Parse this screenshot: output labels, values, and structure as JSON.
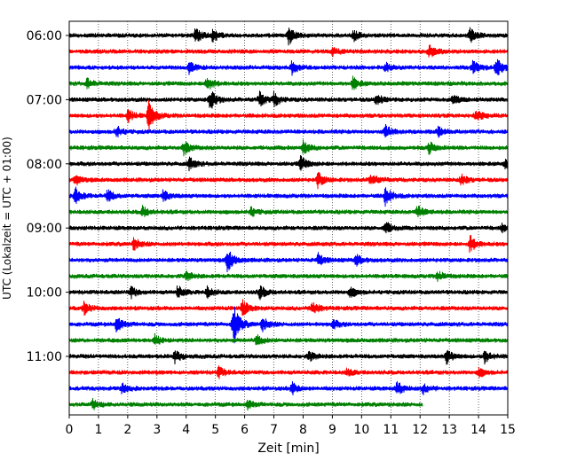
{
  "chart_data": {
    "type": "line",
    "title": "",
    "xlabel": "Zeit  [min]",
    "ylabel": "UTC (Lokalzeit = UTC + 01:00)",
    "xlim": [
      0,
      15
    ],
    "x_ticks": [
      "0",
      "1",
      "2",
      "3",
      "4",
      "5",
      "6",
      "7",
      "8",
      "9",
      "10",
      "11",
      "12",
      "13",
      "14",
      "15"
    ],
    "row_interval_min": 15,
    "y_ticks": [
      {
        "label": "06:00",
        "row": 0
      },
      {
        "label": "07:00",
        "row": 4
      },
      {
        "label": "08:00",
        "row": 8
      },
      {
        "label": "09:00",
        "row": 12
      },
      {
        "label": "10:00",
        "row": 16
      },
      {
        "label": "11:00",
        "row": 20
      }
    ],
    "grid": "vertical dotted",
    "line_colors": [
      "#000000",
      "#ff0000",
      "#0000ff",
      "#008000"
    ],
    "series": [
      {
        "start": "06:00",
        "end_min": 15,
        "events": [
          [
            4.3,
            1.0
          ],
          [
            4.9,
            0.8
          ],
          [
            7.5,
            1.2
          ],
          [
            9.7,
            0.7
          ],
          [
            13.7,
            0.9
          ]
        ]
      },
      {
        "start": "06:15",
        "end_min": 15,
        "events": [
          [
            9.0,
            0.5
          ],
          [
            12.3,
            0.9
          ]
        ]
      },
      {
        "start": "06:30",
        "end_min": 15,
        "events": [
          [
            4.1,
            0.7
          ],
          [
            7.6,
            0.9
          ],
          [
            10.8,
            0.6
          ],
          [
            13.8,
            0.9
          ],
          [
            14.6,
            1.4
          ]
        ]
      },
      {
        "start": "06:45",
        "end_min": 15,
        "events": [
          [
            0.6,
            0.6
          ],
          [
            4.7,
            1.0
          ],
          [
            9.7,
            0.8
          ]
        ]
      },
      {
        "start": "07:00",
        "end_min": 15,
        "events": [
          [
            4.8,
            1.4
          ],
          [
            6.5,
            0.9
          ],
          [
            7.0,
            0.8
          ],
          [
            10.5,
            0.7
          ],
          [
            13.1,
            0.6
          ]
        ]
      },
      {
        "start": "07:15",
        "end_min": 15,
        "events": [
          [
            2.0,
            0.8
          ],
          [
            2.7,
            2.0
          ],
          [
            13.9,
            0.7
          ]
        ]
      },
      {
        "start": "07:30",
        "end_min": 15,
        "events": [
          [
            1.6,
            0.7
          ],
          [
            10.8,
            0.8
          ],
          [
            12.6,
            0.6
          ]
        ]
      },
      {
        "start": "07:45",
        "end_min": 15,
        "events": [
          [
            3.9,
            0.9
          ],
          [
            8.0,
            0.8
          ],
          [
            12.3,
            0.7
          ]
        ]
      },
      {
        "start": "08:00",
        "end_min": 15,
        "events": [
          [
            4.1,
            0.8
          ],
          [
            7.9,
            1.0
          ],
          [
            14.9,
            0.6
          ]
        ]
      },
      {
        "start": "08:15",
        "end_min": 15,
        "events": [
          [
            0.2,
            0.7
          ],
          [
            8.5,
            1.0
          ],
          [
            10.3,
            0.8
          ],
          [
            13.4,
            0.7
          ]
        ]
      },
      {
        "start": "08:30",
        "end_min": 15,
        "events": [
          [
            0.2,
            1.1
          ],
          [
            1.3,
            0.8
          ],
          [
            3.2,
            0.7
          ],
          [
            10.8,
            1.2
          ]
        ]
      },
      {
        "start": "08:45",
        "end_min": 15,
        "events": [
          [
            2.5,
            0.7
          ],
          [
            6.2,
            0.6
          ],
          [
            11.9,
            0.8
          ]
        ]
      },
      {
        "start": "09:00",
        "end_min": 15,
        "events": [
          [
            10.8,
            0.9
          ],
          [
            14.8,
            0.5
          ]
        ]
      },
      {
        "start": "09:15",
        "end_min": 15,
        "events": [
          [
            2.2,
            0.8
          ],
          [
            13.7,
            1.1
          ]
        ]
      },
      {
        "start": "09:30",
        "end_min": 15,
        "events": [
          [
            5.4,
            1.6
          ],
          [
            8.5,
            0.8
          ],
          [
            9.8,
            0.7
          ]
        ]
      },
      {
        "start": "09:45",
        "end_min": 15,
        "events": [
          [
            4.0,
            0.6
          ],
          [
            12.6,
            0.7
          ]
        ]
      },
      {
        "start": "10:00",
        "end_min": 15,
        "events": [
          [
            2.1,
            0.7
          ],
          [
            3.7,
            0.8
          ],
          [
            4.7,
            0.7
          ],
          [
            6.5,
            0.9
          ],
          [
            9.6,
            0.7
          ]
        ]
      },
      {
        "start": "10:15",
        "end_min": 15,
        "events": [
          [
            0.5,
            0.8
          ],
          [
            5.9,
            1.1
          ],
          [
            8.3,
            0.9
          ]
        ]
      },
      {
        "start": "10:30",
        "end_min": 15,
        "events": [
          [
            1.6,
            1.0
          ],
          [
            5.6,
            2.8
          ],
          [
            6.6,
            0.9
          ],
          [
            9.0,
            0.6
          ]
        ]
      },
      {
        "start": "10:45",
        "end_min": 15,
        "events": [
          [
            2.9,
            0.8
          ],
          [
            6.4,
            0.7
          ]
        ]
      },
      {
        "start": "11:00",
        "end_min": 15,
        "events": [
          [
            3.6,
            0.8
          ],
          [
            8.2,
            0.6
          ],
          [
            12.9,
            0.9
          ],
          [
            14.2,
            0.9
          ]
        ]
      },
      {
        "start": "11:15",
        "end_min": 15,
        "events": [
          [
            5.1,
            0.7
          ],
          [
            9.5,
            0.5
          ],
          [
            14.0,
            0.6
          ]
        ]
      },
      {
        "start": "11:30",
        "end_min": 15,
        "events": [
          [
            1.8,
            0.7
          ],
          [
            7.6,
            0.8
          ],
          [
            11.2,
            0.9
          ],
          [
            12.1,
            0.6
          ]
        ]
      },
      {
        "start": "11:45",
        "end_min": 12.1,
        "events": [
          [
            0.8,
            0.6
          ],
          [
            6.1,
            0.5
          ]
        ]
      }
    ]
  }
}
